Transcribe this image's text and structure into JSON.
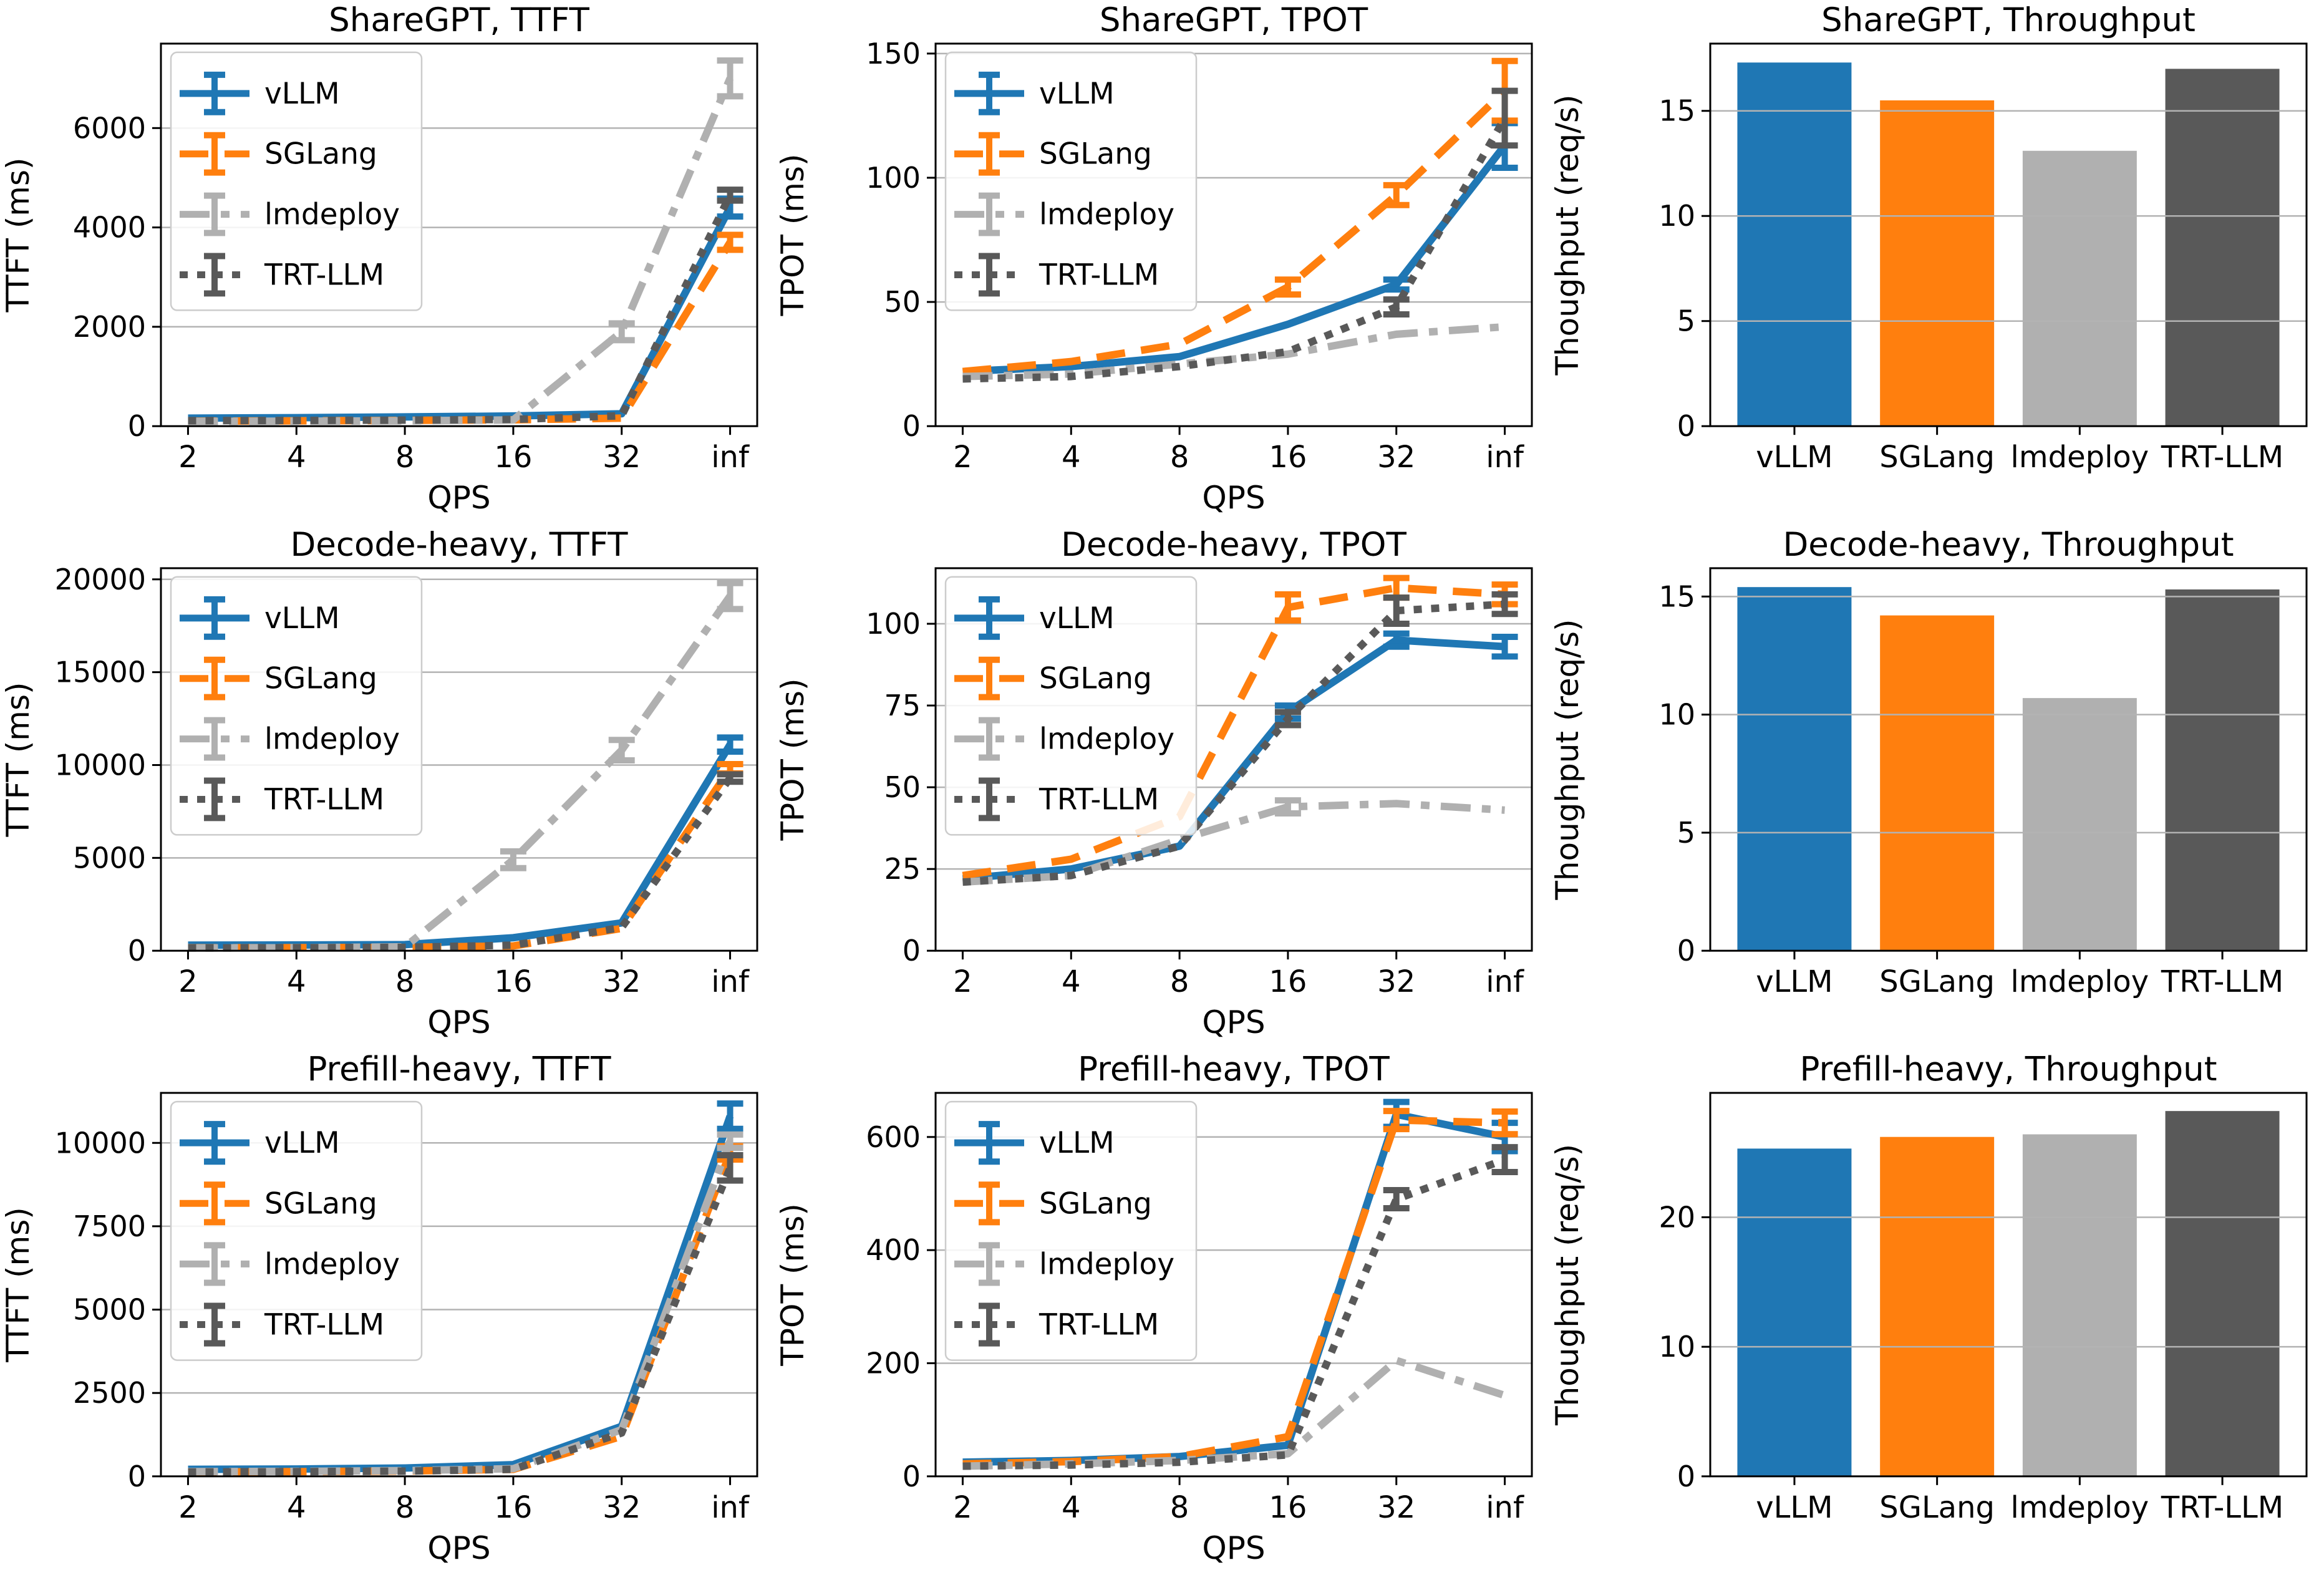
{
  "colors": {
    "vLLM": "#1f77b4",
    "SGLang": "#ff7f0e",
    "lmdeploy": "#b0b0b0",
    "TRT-LLM": "#595959",
    "grid": "#b3b3b3",
    "spine": "#000000",
    "text": "#000000",
    "legend_border": "#cccccc"
  },
  "chart_data": [
    {
      "type": "line",
      "title": "ShareGPT, TTFT",
      "xlabel": "QPS",
      "ylabel": "TTFT (ms)",
      "x_ticklabels": [
        "2",
        "4",
        "8",
        "16",
        "32",
        "inf"
      ],
      "x_scale": "log2-equal-spaced",
      "ylim": [
        0,
        7700
      ],
      "yticks": [
        0,
        2000,
        4000,
        6000
      ],
      "grid": true,
      "legend_position": "upper-left",
      "series": [
        {
          "name": "vLLM",
          "color": "#1f77b4",
          "dash": "solid",
          "values": [
            160,
            170,
            185,
            205,
            250,
            4400
          ],
          "err": [
            0,
            0,
            0,
            0,
            0,
            180
          ]
        },
        {
          "name": "SGLang",
          "color": "#ff7f0e",
          "dash": "dashed",
          "values": [
            100,
            108,
            115,
            128,
            160,
            3700
          ],
          "err": [
            0,
            0,
            0,
            0,
            0,
            150
          ]
        },
        {
          "name": "lmdeploy",
          "color": "#b0b0b0",
          "dash": "dashdot",
          "values": [
            95,
            100,
            108,
            125,
            1900,
            7000
          ],
          "err": [
            0,
            0,
            0,
            0,
            170,
            360
          ]
        },
        {
          "name": "TRT-LLM",
          "color": "#595959",
          "dash": "dotted",
          "values": [
            110,
            115,
            122,
            135,
            210,
            4650
          ],
          "err": [
            0,
            0,
            0,
            0,
            0,
            110
          ]
        }
      ]
    },
    {
      "type": "line",
      "title": "ShareGPT, TPOT",
      "xlabel": "QPS",
      "ylabel": "TPOT (ms)",
      "x_ticklabels": [
        "2",
        "4",
        "8",
        "16",
        "32",
        "inf"
      ],
      "x_scale": "log2-equal-spaced",
      "ylim": [
        0,
        154
      ],
      "yticks": [
        0,
        50,
        100,
        150
      ],
      "grid": true,
      "legend_position": "upper-left",
      "series": [
        {
          "name": "vLLM",
          "color": "#1f77b4",
          "dash": "solid",
          "values": [
            22,
            24,
            28,
            41,
            57,
            113
          ],
          "err": [
            0,
            0,
            0,
            0,
            2,
            9
          ]
        },
        {
          "name": "SGLang",
          "color": "#ff7f0e",
          "dash": "dashed",
          "values": [
            22,
            26,
            33,
            56,
            93,
            135
          ],
          "err": [
            0,
            0,
            0,
            3,
            4,
            12
          ]
        },
        {
          "name": "lmdeploy",
          "color": "#b0b0b0",
          "dash": "dashdot",
          "values": [
            20,
            21,
            25,
            29,
            37,
            40
          ],
          "err": [
            0,
            0,
            0,
            0,
            0,
            0
          ]
        },
        {
          "name": "TRT-LLM",
          "color": "#595959",
          "dash": "dotted",
          "values": [
            19,
            20,
            24,
            30,
            48,
            124
          ],
          "err": [
            0,
            0,
            0,
            0,
            3,
            11
          ]
        }
      ]
    },
    {
      "type": "bar",
      "title": "ShareGPT, Throughput",
      "ylabel": "Thoughput (req/s)",
      "categories": [
        "vLLM",
        "SGLang",
        "lmdeploy",
        "TRT-LLM"
      ],
      "values": [
        17.3,
        15.5,
        13.1,
        17.0
      ],
      "bar_colors": [
        "#1f77b4",
        "#ff7f0e",
        "#b0b0b0",
        "#595959"
      ],
      "ylim": [
        0,
        18.2
      ],
      "yticks": [
        0,
        5,
        10,
        15
      ],
      "grid": true
    },
    {
      "type": "line",
      "title": "Decode-heavy, TTFT",
      "xlabel": "QPS",
      "ylabel": "TTFT (ms)",
      "x_ticklabels": [
        "2",
        "4",
        "8",
        "16",
        "32",
        "inf"
      ],
      "x_scale": "log2-equal-spaced",
      "ylim": [
        0,
        20600
      ],
      "yticks": [
        0,
        5000,
        10000,
        15000,
        20000
      ],
      "grid": true,
      "legend_position": "upper-left",
      "series": [
        {
          "name": "vLLM",
          "color": "#1f77b4",
          "dash": "solid",
          "values": [
            300,
            310,
            330,
            700,
            1500,
            11100
          ],
          "err": [
            0,
            0,
            0,
            0,
            0,
            380
          ]
        },
        {
          "name": "SGLang",
          "color": "#ff7f0e",
          "dash": "dashed",
          "values": [
            160,
            165,
            180,
            260,
            1200,
            9800
          ],
          "err": [
            0,
            0,
            0,
            0,
            0,
            250
          ]
        },
        {
          "name": "lmdeploy",
          "color": "#b0b0b0",
          "dash": "dashdot",
          "values": [
            150,
            160,
            210,
            4900,
            10800,
            19100
          ],
          "err": [
            0,
            0,
            0,
            450,
            550,
            700
          ]
        },
        {
          "name": "TRT-LLM",
          "color": "#595959",
          "dash": "dotted",
          "values": [
            150,
            160,
            185,
            300,
            1250,
            9300
          ],
          "err": [
            0,
            0,
            0,
            0,
            0,
            200
          ]
        }
      ]
    },
    {
      "type": "line",
      "title": "Decode-heavy, TPOT",
      "xlabel": "QPS",
      "ylabel": "TPOT (ms)",
      "x_ticklabels": [
        "2",
        "4",
        "8",
        "16",
        "32",
        "inf"
      ],
      "x_scale": "log2-equal-spaced",
      "ylim": [
        0,
        117
      ],
      "yticks": [
        0,
        25,
        50,
        75,
        100
      ],
      "grid": true,
      "legend_position": "upper-left",
      "series": [
        {
          "name": "vLLM",
          "color": "#1f77b4",
          "dash": "solid",
          "values": [
            22,
            25,
            32,
            73,
            95,
            93
          ],
          "err": [
            0,
            0,
            0,
            2,
            2,
            3
          ]
        },
        {
          "name": "SGLang",
          "color": "#ff7f0e",
          "dash": "dashed",
          "values": [
            23,
            28,
            41,
            105,
            111,
            109
          ],
          "err": [
            0,
            0,
            0,
            4,
            3,
            3
          ]
        },
        {
          "name": "lmdeploy",
          "color": "#b0b0b0",
          "dash": "dashdot",
          "values": [
            21,
            23,
            34,
            44,
            45,
            43
          ],
          "err": [
            0,
            0,
            0,
            2,
            0,
            0
          ]
        },
        {
          "name": "TRT-LLM",
          "color": "#595959",
          "dash": "dotted",
          "values": [
            21,
            23,
            32,
            71,
            104,
            106
          ],
          "err": [
            0,
            0,
            0,
            2,
            4,
            3
          ]
        }
      ]
    },
    {
      "type": "bar",
      "title": "Decode-heavy, Throughput",
      "ylabel": "Thoughput (req/s)",
      "categories": [
        "vLLM",
        "SGLang",
        "lmdeploy",
        "TRT-LLM"
      ],
      "values": [
        15.4,
        14.2,
        10.7,
        15.3
      ],
      "bar_colors": [
        "#1f77b4",
        "#ff7f0e",
        "#b0b0b0",
        "#595959"
      ],
      "ylim": [
        0,
        16.2
      ],
      "yticks": [
        0,
        5,
        10,
        15
      ],
      "grid": true
    },
    {
      "type": "line",
      "title": "Prefill-heavy, TTFT",
      "xlabel": "QPS",
      "ylabel": "TTFT (ms)",
      "x_ticklabels": [
        "2",
        "4",
        "8",
        "16",
        "32",
        "inf"
      ],
      "x_scale": "log2-equal-spaced",
      "ylim": [
        0,
        11500
      ],
      "yticks": [
        0,
        2500,
        5000,
        7500,
        10000
      ],
      "grid": true,
      "legend_position": "upper-left",
      "series": [
        {
          "name": "vLLM",
          "color": "#1f77b4",
          "dash": "solid",
          "values": [
            210,
            220,
            250,
            350,
            1500,
            10800
          ],
          "err": [
            0,
            0,
            0,
            0,
            0,
            380
          ]
        },
        {
          "name": "SGLang",
          "color": "#ff7f0e",
          "dash": "dashed",
          "values": [
            130,
            140,
            160,
            210,
            1200,
            9700
          ],
          "err": [
            0,
            0,
            0,
            0,
            0,
            200
          ]
        },
        {
          "name": "lmdeploy",
          "color": "#b0b0b0",
          "dash": "dashdot",
          "values": [
            140,
            150,
            170,
            230,
            1400,
            10050
          ],
          "err": [
            0,
            0,
            0,
            0,
            0,
            200
          ]
        },
        {
          "name": "TRT-LLM",
          "color": "#595959",
          "dash": "dotted",
          "values": [
            130,
            140,
            155,
            210,
            1300,
            9250
          ],
          "err": [
            0,
            0,
            0,
            0,
            0,
            380
          ]
        }
      ]
    },
    {
      "type": "line",
      "title": "Prefill-heavy, TPOT",
      "xlabel": "QPS",
      "ylabel": "TPOT (ms)",
      "x_ticklabels": [
        "2",
        "4",
        "8",
        "16",
        "32",
        "inf"
      ],
      "x_scale": "log2-equal-spaced",
      "ylim": [
        0,
        678
      ],
      "yticks": [
        0,
        200,
        400,
        600
      ],
      "grid": true,
      "legend_position": "upper-left",
      "series": [
        {
          "name": "vLLM",
          "color": "#1f77b4",
          "dash": "solid",
          "values": [
            25,
            28,
            35,
            55,
            640,
            600
          ],
          "err": [
            0,
            0,
            0,
            0,
            22,
            25
          ]
        },
        {
          "name": "SGLang",
          "color": "#ff7f0e",
          "dash": "dashed",
          "values": [
            22,
            26,
            35,
            70,
            630,
            625
          ],
          "err": [
            0,
            0,
            0,
            0,
            16,
            20
          ]
        },
        {
          "name": "lmdeploy",
          "color": "#b0b0b0",
          "dash": "dashdot",
          "values": [
            18,
            22,
            28,
            40,
            205,
            143
          ],
          "err": [
            0,
            0,
            0,
            0,
            0,
            0
          ]
        },
        {
          "name": "TRT-LLM",
          "color": "#595959",
          "dash": "dotted",
          "values": [
            18,
            20,
            25,
            38,
            490,
            560
          ],
          "err": [
            0,
            0,
            0,
            0,
            16,
            22
          ]
        }
      ]
    },
    {
      "type": "bar",
      "title": "Prefill-heavy, Throughput",
      "ylabel": "Thoughput (req/s)",
      "categories": [
        "vLLM",
        "SGLang",
        "lmdeploy",
        "TRT-LLM"
      ],
      "values": [
        25.3,
        26.2,
        26.4,
        28.2
      ],
      "bar_colors": [
        "#1f77b4",
        "#ff7f0e",
        "#b0b0b0",
        "#595959"
      ],
      "ylim": [
        0,
        29.6
      ],
      "yticks": [
        0,
        10,
        20
      ],
      "grid": true
    }
  ]
}
